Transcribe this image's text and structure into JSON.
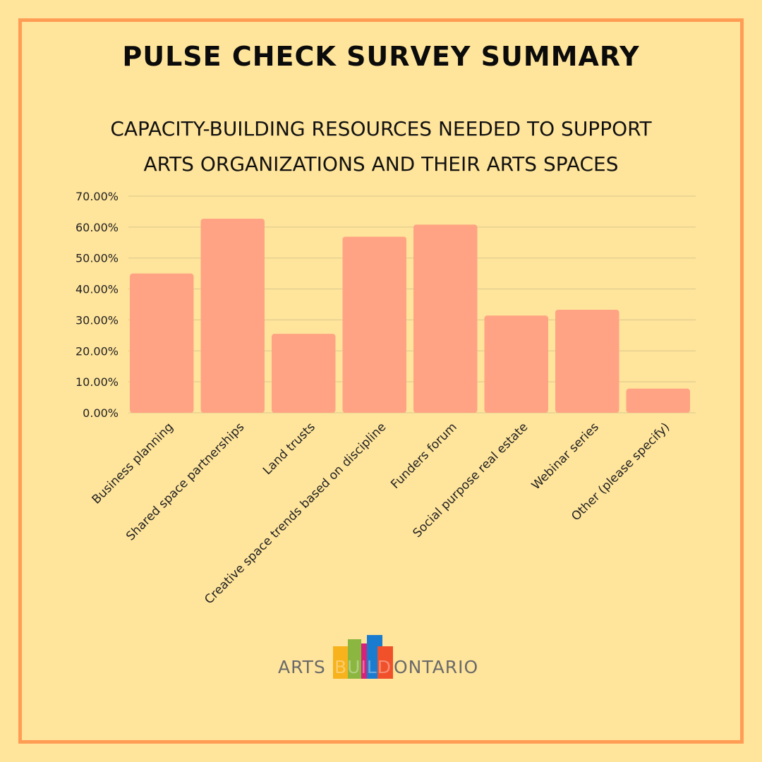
{
  "header": {
    "title": "PULSE CHECK SURVEY SUMMARY",
    "subtitle_line1": "CAPACITY-BUILDING RESOURCES NEEDED TO SUPPORT",
    "subtitle_line2": "ARTS ORGANIZATIONS AND THEIR ARTS SPACES"
  },
  "colors": {
    "background": "#ffe49b",
    "border": "#ff9d55",
    "bar": "#ffa384",
    "grid": "#d9c78e",
    "text": "#222222"
  },
  "chart_data": {
    "type": "bar",
    "categories": [
      "Business planning",
      "Shared space partnerships",
      "Land trusts",
      "Creative space trends based on discipline",
      "Funders forum",
      "Social purpose real estate",
      "Webinar series",
      "Other (please specify)"
    ],
    "values": [
      45.0,
      62.7,
      25.5,
      56.9,
      60.8,
      31.4,
      33.3,
      7.8
    ],
    "yticks": [
      "0.00%",
      "10.00%",
      "20.00%",
      "30.00%",
      "40.00%",
      "50.00%",
      "60.00%",
      "70.00%"
    ],
    "ylim": [
      0,
      70
    ],
    "grid": true,
    "legend": "none"
  },
  "logo": {
    "text_left": "ARTS",
    "text_mid": "BUILD",
    "text_right": "ONTARIO",
    "block_colors": [
      "#f7b21c",
      "#8bb640",
      "#d6237a",
      "#1a7ccf",
      "#f0502a"
    ]
  }
}
